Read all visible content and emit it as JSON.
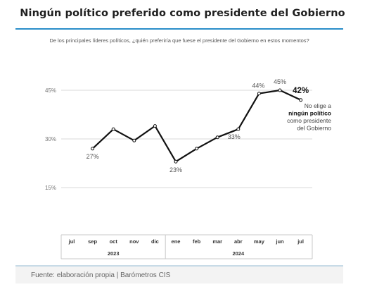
{
  "title": "Ningún político preferido como presidente del Gobierno",
  "subtitle": "De los principales líderes políticos, ¿quién preferiría que fuese el presidente del Gobierno en estos momentos?",
  "source": "Fuente: elaboración propia | Barómetros CIS",
  "colors": {
    "line": "#111111",
    "rule": "#2a8ec9",
    "grid": "#d9d9d9"
  },
  "chart_data": {
    "type": "line",
    "title": "Ningún político preferido como presidente del Gobierno",
    "x": [
      "jul",
      "sep",
      "oct",
      "nov",
      "dic",
      "ene",
      "feb",
      "mar",
      "abr",
      "may",
      "jun",
      "jul"
    ],
    "year_groups": [
      {
        "label": "2023",
        "from": 0,
        "to": 4
      },
      {
        "label": "2024",
        "from": 5,
        "to": 11
      }
    ],
    "series": [
      {
        "values": [
          null,
          27,
          33,
          29.5,
          34,
          23,
          27,
          30.5,
          33,
          44,
          45,
          42
        ]
      }
    ],
    "point_labels": [
      {
        "index": 1,
        "text": "27%"
      },
      {
        "index": 5,
        "text": "23%"
      },
      {
        "index": 8,
        "text": "33%"
      },
      {
        "index": 9,
        "text": "44%"
      },
      {
        "index": 10,
        "text": "45%"
      },
      {
        "index": 11,
        "text": "42%"
      }
    ],
    "annotation": [
      "No elige a",
      "ningún político",
      "como presidente",
      "del Gobierno"
    ],
    "y_ticks": [
      15,
      30,
      45
    ],
    "y_tick_labels": [
      "15%",
      "30%",
      "45%"
    ],
    "ylim": [
      15,
      45
    ],
    "grid": true
  }
}
